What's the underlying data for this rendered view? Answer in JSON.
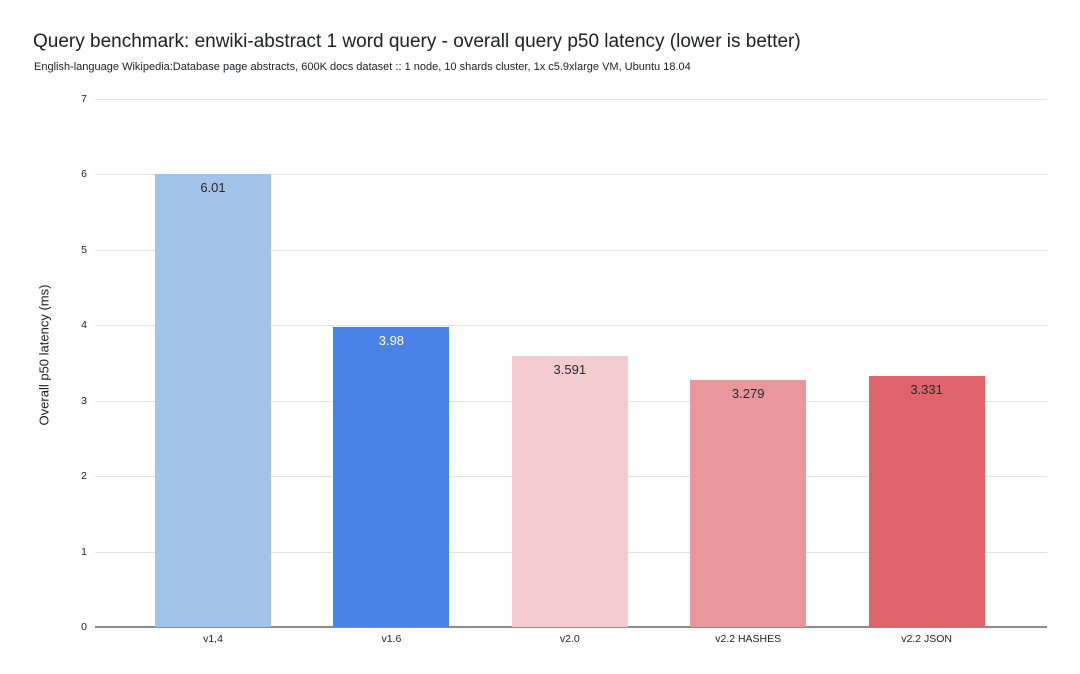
{
  "header": {
    "title": "Query benchmark: enwiki-abstract 1 word query - overall query p50 latency (lower is better)",
    "subtitle": "English-language Wikipedia:Database page abstracts, 600K docs dataset :: 1 node, 10 shards cluster, 1x c5.9xlarge VM, Ubuntu 18.04"
  },
  "chart_data": {
    "type": "bar",
    "title": "Query benchmark: enwiki-abstract 1 word query - overall query p50 latency (lower is better)",
    "subtitle": "English-language Wikipedia:Database page abstracts, 600K docs dataset :: 1 node, 10 shards cluster, 1x c5.9xlarge VM, Ubuntu 18.04",
    "categories": [
      "v1,4",
      "v1.6",
      "v2.0",
      "v2.2 HASHES",
      "v2.2 JSON"
    ],
    "values": [
      6.01,
      3.98,
      3.591,
      3.279,
      3.331
    ],
    "value_labels": [
      "6.01",
      "3.98",
      "3.591",
      "3.279",
      "3.331"
    ],
    "bar_colors": [
      "#a2c3e9",
      "#4a82e8",
      "#f4cbce",
      "#ea979b",
      "#e0646a"
    ],
    "value_label_colors": [
      "#24292e",
      "#ffffff",
      "#24292e",
      "#24292e",
      "#24292e"
    ],
    "xlabel": "",
    "ylabel": "Overall p50 latency (ms)",
    "ylim": [
      0,
      7
    ],
    "yticks": [
      0,
      1,
      2,
      3,
      4,
      5,
      6,
      7
    ],
    "grid": true,
    "legend": "none",
    "colors": {
      "background": "#ffffff",
      "gridline": "#e4e4e4",
      "axis_line": "#8b8b8b",
      "text": "#202124"
    }
  }
}
